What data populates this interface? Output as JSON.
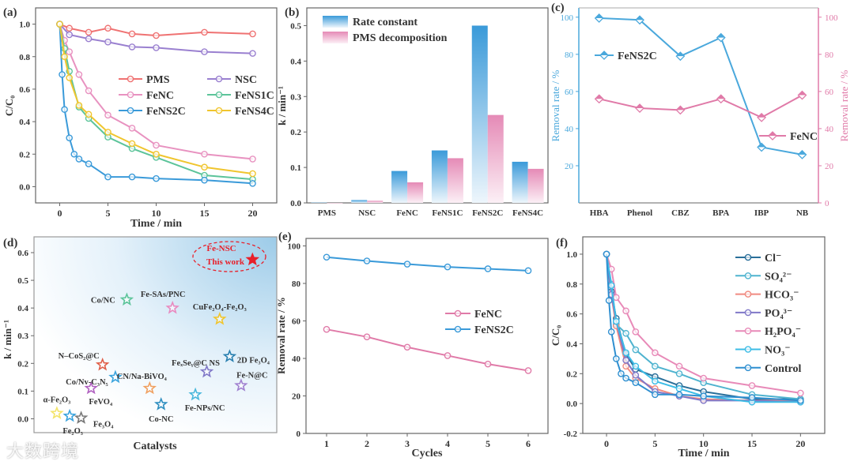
{
  "watermark": "大数跨境",
  "chart_data": [
    {
      "panel": "(a)",
      "type": "line",
      "xlabel": "Time / min",
      "ylabel": "C/C₀",
      "xlim": [
        -2.5,
        22.5
      ],
      "ylim": [
        -0.1,
        1.1
      ],
      "xticks": [
        0,
        5,
        10,
        15,
        20
      ],
      "yticks": [
        0.0,
        0.2,
        0.4,
        0.6,
        0.8,
        1.0
      ],
      "ytick_decimals": 1,
      "legend": "center-right, 2 columns",
      "series": [
        {
          "name": "PMS",
          "color": "#ef7272",
          "x": [
            0,
            1,
            3,
            5,
            7.5,
            10,
            15,
            20
          ],
          "y": [
            1,
            0.975,
            0.95,
            0.975,
            0.94,
            0.93,
            0.95,
            0.94
          ]
        },
        {
          "name": "NSC",
          "color": "#9a80d0",
          "x": [
            0,
            1,
            3,
            5,
            7.5,
            10,
            15,
            20
          ],
          "y": [
            1,
            0.935,
            0.91,
            0.89,
            0.86,
            0.855,
            0.83,
            0.82
          ]
        },
        {
          "name": "FeNC",
          "color": "#e892c0",
          "x": [
            0,
            0.5,
            1,
            2,
            3,
            5,
            7.5,
            10,
            15,
            20
          ],
          "y": [
            1,
            0.9,
            0.83,
            0.69,
            0.59,
            0.44,
            0.36,
            0.255,
            0.2,
            0.17
          ]
        },
        {
          "name": "FeNS1C",
          "color": "#5cc49a",
          "x": [
            0,
            0.5,
            1,
            2,
            3,
            5,
            7.5,
            10,
            15,
            20
          ],
          "y": [
            1,
            0.85,
            0.71,
            0.49,
            0.42,
            0.305,
            0.235,
            0.18,
            0.07,
            0.045
          ]
        },
        {
          "name": "FeNS2C",
          "color": "#3a9ad9",
          "x": [
            0,
            0.25,
            0.5,
            1,
            1.5,
            2,
            3,
            5,
            7.5,
            10,
            15,
            20
          ],
          "y": [
            1,
            0.69,
            0.475,
            0.3,
            0.2,
            0.17,
            0.14,
            0.06,
            0.06,
            0.05,
            0.04,
            0.02
          ]
        },
        {
          "name": "FeNS4C",
          "color": "#f0c52e",
          "x": [
            0,
            0.5,
            1,
            2,
            3,
            5,
            7.5,
            10,
            15,
            20
          ],
          "y": [
            1,
            0.8,
            0.67,
            0.5,
            0.445,
            0.335,
            0.265,
            0.2,
            0.12,
            0.08
          ]
        }
      ]
    },
    {
      "panel": "(b)",
      "type": "bar",
      "xlabel": "",
      "ylabel": "k / min⁻¹",
      "ylim": [
        0,
        0.55
      ],
      "yticks": [
        0.0,
        0.1,
        0.2,
        0.3,
        0.4,
        0.5
      ],
      "ytick_decimals": 1,
      "legend": "top-left",
      "categories": [
        "PMS",
        "NSC",
        "FeNC",
        "FeNS1C",
        "FeNS2C",
        "FeNS4C"
      ],
      "series": [
        {
          "name": "Rate constant",
          "color": "#3a9ad9",
          "values": [
            0.001,
            0.008,
            0.09,
            0.148,
            0.5,
            0.116
          ]
        },
        {
          "name": "PMS decomposition",
          "color": "#e58ab6",
          "values": [
            0.0,
            0.006,
            0.058,
            0.126,
            0.248,
            0.096
          ]
        }
      ]
    },
    {
      "panel": "(c)",
      "type": "line",
      "xlabel": "",
      "ylabel_left": "Removal rate / %",
      "ylabel_right": "Removal rate / %",
      "ylim": [
        0,
        105
      ],
      "yticks_left": [
        20,
        40,
        60,
        80,
        100
      ],
      "yticks_right": [
        0,
        20,
        40,
        60,
        80,
        100
      ],
      "categories": [
        "HBA",
        "Phenol",
        "CBZ",
        "BPA",
        "IBP",
        "NB"
      ],
      "series": [
        {
          "name": "FeNS2C",
          "axis": "left",
          "color": "#4aa8dc",
          "values": [
            99.5,
            98.5,
            79,
            89,
            30,
            26
          ]
        },
        {
          "name": "FeNC",
          "axis": "right",
          "color": "#e07aa8",
          "values": [
            56,
            51,
            50,
            56,
            46,
            58
          ]
        }
      ]
    },
    {
      "panel": "(d)",
      "type": "scatter",
      "xlabel": "Catalysts",
      "ylabel": "k / min⁻¹",
      "xlim": [
        0,
        17
      ],
      "ylim": [
        -0.05,
        0.657
      ],
      "yticks": [
        0.0,
        0.1,
        0.2,
        0.3,
        0.4,
        0.5,
        0.6
      ],
      "ytick_decimals": 1,
      "highlight_label": [
        "Fe-NSC",
        "This work"
      ],
      "points": [
        {
          "label": "α-Fe₂O₃",
          "x": 1.6,
          "y": 0.02,
          "color": "#f3e46a"
        },
        {
          "label": "Fe₂O₃",
          "x": 2.5,
          "y": 0.01,
          "color": "#3aa3dd"
        },
        {
          "label": "Fe₃O₄",
          "x": 3.3,
          "y": 0.003,
          "color": "#777777"
        },
        {
          "label": "FeVO₄",
          "x": 4.0,
          "y": 0.11,
          "color": "#b060c0"
        },
        {
          "label": "N–CoS₂@C",
          "x": 4.8,
          "y": 0.195,
          "color": "#e0604a"
        },
        {
          "label": "Co/Nv-C₃N₅",
          "x": 5.7,
          "y": 0.15,
          "color": "#3aa3dd"
        },
        {
          "label": "Co/NC",
          "x": 6.5,
          "y": 0.43,
          "color": "#5cc49a"
        },
        {
          "label": "CN/Na-BiVO₄",
          "x": 8.1,
          "y": 0.11,
          "color": "#f0a060"
        },
        {
          "label": "Co-NC",
          "x": 8.9,
          "y": 0.052,
          "color": "#2f8fc0"
        },
        {
          "label": "Fe-SAs/PNC",
          "x": 9.7,
          "y": 0.4,
          "color": "#e88ac0"
        },
        {
          "label": "Fe-NPs/NC",
          "x": 11.3,
          "y": 0.087,
          "color": "#4ab8dc"
        },
        {
          "label": "FeₓSeᵧ@C NS",
          "x": 12.1,
          "y": 0.17,
          "color": "#8078c8"
        },
        {
          "label": "CuFe₂O₄-Fe₂O₃",
          "x": 13.0,
          "y": 0.36,
          "color": "#f0c52e"
        },
        {
          "label": "2D Fe₃O₄",
          "x": 13.7,
          "y": 0.225,
          "color": "#2a80b0"
        },
        {
          "label": "Fe-N@C",
          "x": 14.5,
          "y": 0.12,
          "color": "#a080d0"
        },
        {
          "label": "Fe-NSC",
          "x": 15.3,
          "y": 0.575,
          "color": "#e8202a"
        }
      ]
    },
    {
      "panel": "(e)",
      "type": "line",
      "xlabel": "Cycles",
      "ylabel": "Removal rate / %",
      "xlim": [
        0.49,
        6.49
      ],
      "ylim": [
        0,
        104
      ],
      "xticks": [
        1,
        2,
        3,
        4,
        5,
        6
      ],
      "yticks": [
        0,
        20,
        40,
        60,
        80,
        100
      ],
      "ytick_decimals": 0,
      "legend": "center-right",
      "series": [
        {
          "name": "FeNC",
          "color": "#e07aa8",
          "x": [
            1,
            2,
            3,
            4,
            5,
            6
          ],
          "y": [
            55.5,
            51.5,
            46,
            41.5,
            37,
            33.5
          ]
        },
        {
          "name": "FeNS2C",
          "color": "#3a9ad9",
          "x": [
            1,
            2,
            3,
            4,
            5,
            6
          ],
          "y": [
            94,
            92,
            90.3,
            88.8,
            87.8,
            86.8
          ]
        }
      ]
    },
    {
      "panel": "(f)",
      "type": "line",
      "xlabel": "Time / min",
      "ylabel": "C/C₀",
      "xlim": [
        -2.45,
        22.5
      ],
      "ylim": [
        -0.2,
        1.116
      ],
      "xticks": [
        0,
        5,
        10,
        15,
        20
      ],
      "yticks": [
        -0.2,
        0.0,
        0.2,
        0.4,
        0.6,
        0.8,
        1.0
      ],
      "ytick_decimals": 1,
      "legend": "top-right",
      "series": [
        {
          "name": "Cl⁻",
          "color": "#2a6f9a",
          "x": [
            0,
            0.5,
            1,
            2,
            3,
            5,
            7.5,
            10,
            15,
            20
          ],
          "y": [
            1,
            0.75,
            0.57,
            0.33,
            0.23,
            0.18,
            0.12,
            0.08,
            0.03,
            0.03
          ]
        },
        {
          "name": "SO₄²⁻",
          "color": "#4fb3cf",
          "x": [
            0,
            0.5,
            1,
            2,
            3,
            5,
            7.5,
            10,
            15,
            20
          ],
          "y": [
            1,
            0.8,
            0.53,
            0.47,
            0.36,
            0.25,
            0.2,
            0.14,
            0.06,
            0.03
          ]
        },
        {
          "name": "HCO₃⁻",
          "color": "#f08a80",
          "x": [
            0,
            0.5,
            1,
            2,
            3,
            5,
            7.5,
            10,
            15,
            20
          ],
          "y": [
            1,
            0.72,
            0.52,
            0.25,
            0.17,
            0.1,
            0.05,
            0.03,
            0.02,
            0.02
          ]
        },
        {
          "name": "PO₄³⁻",
          "color": "#8078c8",
          "x": [
            0,
            0.5,
            1,
            2,
            3,
            5,
            7.5,
            10,
            15,
            20
          ],
          "y": [
            1,
            0.73,
            0.55,
            0.29,
            0.19,
            0.08,
            0.05,
            0.02,
            0.02,
            0.01
          ]
        },
        {
          "name": "H₂PO₄⁻",
          "color": "#e88ab8",
          "x": [
            0,
            0.5,
            1,
            2,
            3,
            5,
            7.5,
            10,
            15,
            20
          ],
          "y": [
            1,
            0.9,
            0.71,
            0.62,
            0.48,
            0.34,
            0.25,
            0.17,
            0.12,
            0.07
          ]
        },
        {
          "name": "NO₃⁻",
          "color": "#3cbce6",
          "x": [
            0,
            0.5,
            1,
            2,
            3,
            5,
            7.5,
            10,
            15,
            20
          ],
          "y": [
            1,
            0.79,
            0.55,
            0.34,
            0.25,
            0.15,
            0.1,
            0.05,
            0.01,
            0.01
          ]
        },
        {
          "name": "Control",
          "color": "#2f8fd0",
          "x": [
            0,
            0.25,
            0.5,
            1,
            1.5,
            2,
            3,
            5,
            7.5,
            10,
            15,
            20
          ],
          "y": [
            1,
            0.69,
            0.48,
            0.3,
            0.2,
            0.17,
            0.14,
            0.06,
            0.06,
            0.05,
            0.04,
            0.02
          ]
        }
      ]
    }
  ]
}
